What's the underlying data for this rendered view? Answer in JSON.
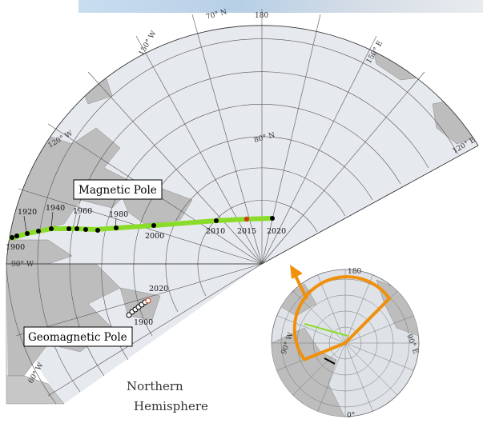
{
  "labels": {
    "magnetic_pole": "Magnetic Pole",
    "geomagnetic_pole": "Geomagnetic Pole",
    "hemisphere_line1": "Northern",
    "hemisphere_line2": "Hemisphere"
  },
  "meridian_labels": [
    "70° N",
    "180",
    "150° W",
    "150° E",
    "120° W",
    "120° E",
    "80° N",
    "90° W",
    "60° W"
  ],
  "magnetic_pole_years": [
    "1900",
    "1920",
    "1940",
    "1960",
    "1980",
    "2000",
    "2010",
    "2015",
    "2020"
  ],
  "geomagnetic_pole_years": [
    "1900",
    "2020"
  ],
  "inset_labels": [
    "180",
    "90° W",
    "90° E",
    "0°"
  ],
  "colors": {
    "track": "#8bdc2a",
    "track_dots": "#000000",
    "highlight_2015": "#d33a1a",
    "inset_frame": "#f0900c",
    "land": "#bdbdbd",
    "ocean": "#e6e9ee"
  }
}
